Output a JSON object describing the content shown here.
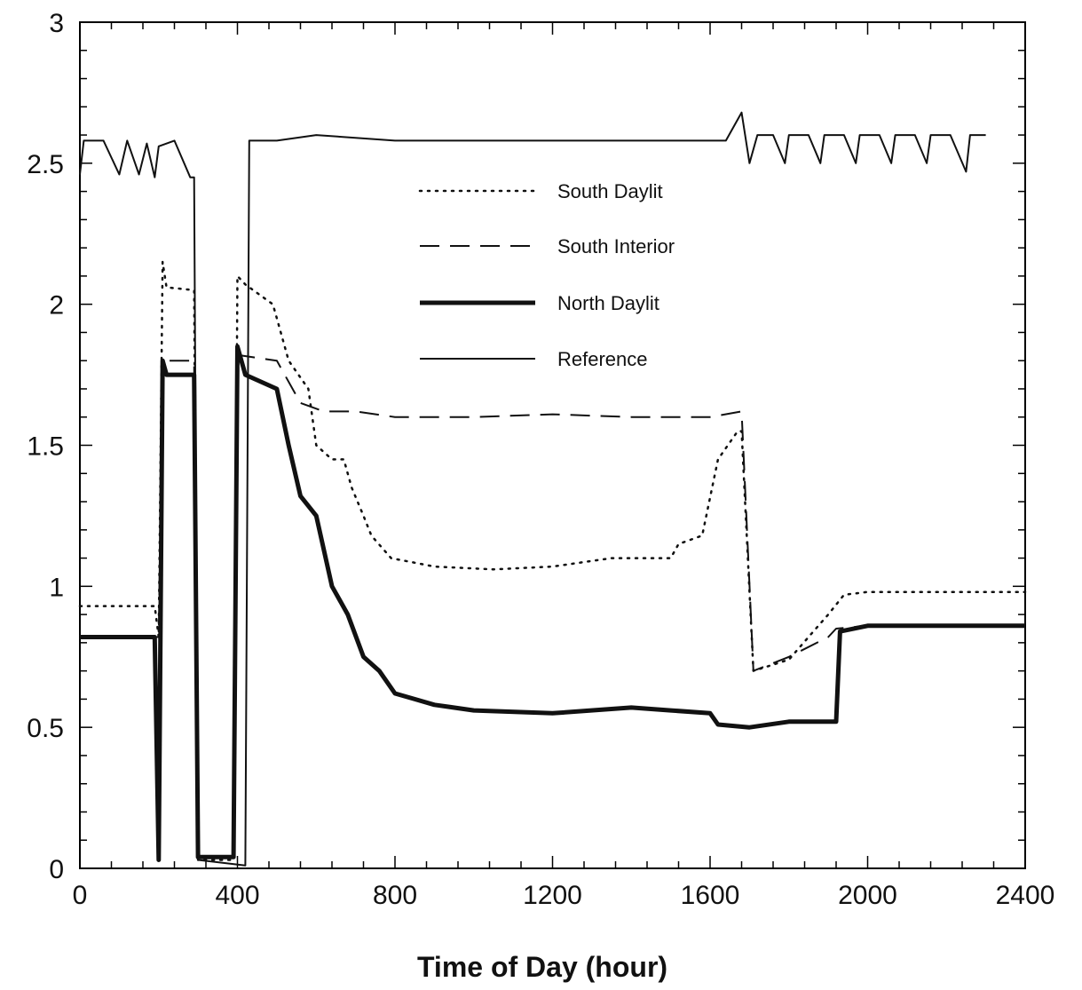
{
  "chart_data": {
    "type": "line",
    "title": "",
    "xlabel": "Time of Day (hour)",
    "ylabel": "",
    "xlim": [
      0,
      2400
    ],
    "ylim": [
      0,
      3
    ],
    "x_ticks": [
      0,
      400,
      800,
      1200,
      1600,
      2000,
      2400
    ],
    "x_tick_labels": [
      "0",
      "400",
      "800",
      "1200",
      "1600",
      "2000",
      "2400"
    ],
    "y_ticks": [
      0,
      0.5,
      1,
      1.5,
      2,
      2.5,
      3
    ],
    "y_tick_labels": [
      "0",
      "0.5",
      "1",
      "1.5",
      "2",
      "2.5",
      "3"
    ],
    "grid": false,
    "legend_placement": "center",
    "colors": {
      "line": "#111111",
      "axis": "#000000",
      "background": "#ffffff"
    },
    "series": [
      {
        "name": "South Daylit",
        "style": "dotted",
        "points": [
          [
            0,
            0.93
          ],
          [
            190,
            0.93
          ],
          [
            200,
            0.82
          ],
          [
            210,
            2.15
          ],
          [
            220,
            2.06
          ],
          [
            290,
            2.05
          ],
          [
            300,
            0.03
          ],
          [
            390,
            0.03
          ],
          [
            400,
            2.1
          ],
          [
            420,
            2.07
          ],
          [
            490,
            2.0
          ],
          [
            500,
            1.95
          ],
          [
            530,
            1.8
          ],
          [
            580,
            1.7
          ],
          [
            600,
            1.5
          ],
          [
            640,
            1.45
          ],
          [
            670,
            1.45
          ],
          [
            690,
            1.35
          ],
          [
            720,
            1.25
          ],
          [
            740,
            1.18
          ],
          [
            790,
            1.1
          ],
          [
            900,
            1.07
          ],
          [
            1050,
            1.06
          ],
          [
            1200,
            1.07
          ],
          [
            1350,
            1.1
          ],
          [
            1500,
            1.1
          ],
          [
            1520,
            1.15
          ],
          [
            1580,
            1.18
          ],
          [
            1620,
            1.45
          ],
          [
            1670,
            1.55
          ],
          [
            1680,
            1.55
          ],
          [
            1710,
            0.7
          ],
          [
            1800,
            0.74
          ],
          [
            1850,
            0.82
          ],
          [
            1900,
            0.9
          ],
          [
            1940,
            0.97
          ],
          [
            2000,
            0.98
          ],
          [
            2400,
            0.98
          ]
        ]
      },
      {
        "name": "South Interior",
        "style": "dashed",
        "points": [
          [
            0,
            0.82
          ],
          [
            190,
            0.82
          ],
          [
            200,
            0.82
          ],
          [
            210,
            1.8
          ],
          [
            290,
            1.8
          ],
          [
            300,
            0.04
          ],
          [
            390,
            0.04
          ],
          [
            400,
            1.82
          ],
          [
            500,
            1.8
          ],
          [
            560,
            1.65
          ],
          [
            620,
            1.62
          ],
          [
            700,
            1.62
          ],
          [
            800,
            1.6
          ],
          [
            1000,
            1.6
          ],
          [
            1200,
            1.61
          ],
          [
            1400,
            1.6
          ],
          [
            1600,
            1.6
          ],
          [
            1680,
            1.62
          ],
          [
            1710,
            0.7
          ],
          [
            1800,
            0.75
          ],
          [
            1900,
            0.82
          ],
          [
            1920,
            0.85
          ],
          [
            2000,
            0.86
          ],
          [
            2400,
            0.86
          ]
        ]
      },
      {
        "name": "North Daylit",
        "style": "thick",
        "points": [
          [
            0,
            0.82
          ],
          [
            190,
            0.82
          ],
          [
            200,
            0.03
          ],
          [
            210,
            1.8
          ],
          [
            220,
            1.75
          ],
          [
            290,
            1.75
          ],
          [
            300,
            0.04
          ],
          [
            390,
            0.04
          ],
          [
            400,
            1.85
          ],
          [
            420,
            1.75
          ],
          [
            500,
            1.7
          ],
          [
            530,
            1.5
          ],
          [
            560,
            1.32
          ],
          [
            600,
            1.25
          ],
          [
            640,
            1.0
          ],
          [
            680,
            0.9
          ],
          [
            720,
            0.75
          ],
          [
            760,
            0.7
          ],
          [
            800,
            0.62
          ],
          [
            850,
            0.6
          ],
          [
            900,
            0.58
          ],
          [
            1000,
            0.56
          ],
          [
            1200,
            0.55
          ],
          [
            1400,
            0.57
          ],
          [
            1500,
            0.56
          ],
          [
            1600,
            0.55
          ],
          [
            1620,
            0.51
          ],
          [
            1700,
            0.5
          ],
          [
            1800,
            0.52
          ],
          [
            1900,
            0.52
          ],
          [
            1920,
            0.52
          ],
          [
            1930,
            0.84
          ],
          [
            2000,
            0.86
          ],
          [
            2400,
            0.86
          ]
        ]
      },
      {
        "name": "Reference",
        "style": "thin",
        "points": [
          [
            0,
            2.46
          ],
          [
            10,
            2.58
          ],
          [
            60,
            2.58
          ],
          [
            100,
            2.46
          ],
          [
            120,
            2.58
          ],
          [
            150,
            2.46
          ],
          [
            170,
            2.57
          ],
          [
            190,
            2.45
          ],
          [
            200,
            2.56
          ],
          [
            240,
            2.58
          ],
          [
            280,
            2.45
          ],
          [
            290,
            2.45
          ],
          [
            300,
            0.03
          ],
          [
            420,
            0.01
          ],
          [
            430,
            2.58
          ],
          [
            500,
            2.58
          ],
          [
            600,
            2.6
          ],
          [
            800,
            2.58
          ],
          [
            1000,
            2.58
          ],
          [
            1200,
            2.58
          ],
          [
            1400,
            2.58
          ],
          [
            1640,
            2.58
          ],
          [
            1680,
            2.68
          ],
          [
            1700,
            2.5
          ],
          [
            1720,
            2.6
          ],
          [
            1760,
            2.6
          ],
          [
            1790,
            2.5
          ],
          [
            1800,
            2.6
          ],
          [
            1850,
            2.6
          ],
          [
            1880,
            2.5
          ],
          [
            1890,
            2.6
          ],
          [
            1940,
            2.6
          ],
          [
            1970,
            2.5
          ],
          [
            1980,
            2.6
          ],
          [
            2030,
            2.6
          ],
          [
            2060,
            2.5
          ],
          [
            2070,
            2.6
          ],
          [
            2120,
            2.6
          ],
          [
            2150,
            2.5
          ],
          [
            2160,
            2.6
          ],
          [
            2210,
            2.6
          ],
          [
            2250,
            2.47
          ],
          [
            2260,
            2.6
          ],
          [
            2300,
            2.6
          ]
        ]
      }
    ]
  }
}
